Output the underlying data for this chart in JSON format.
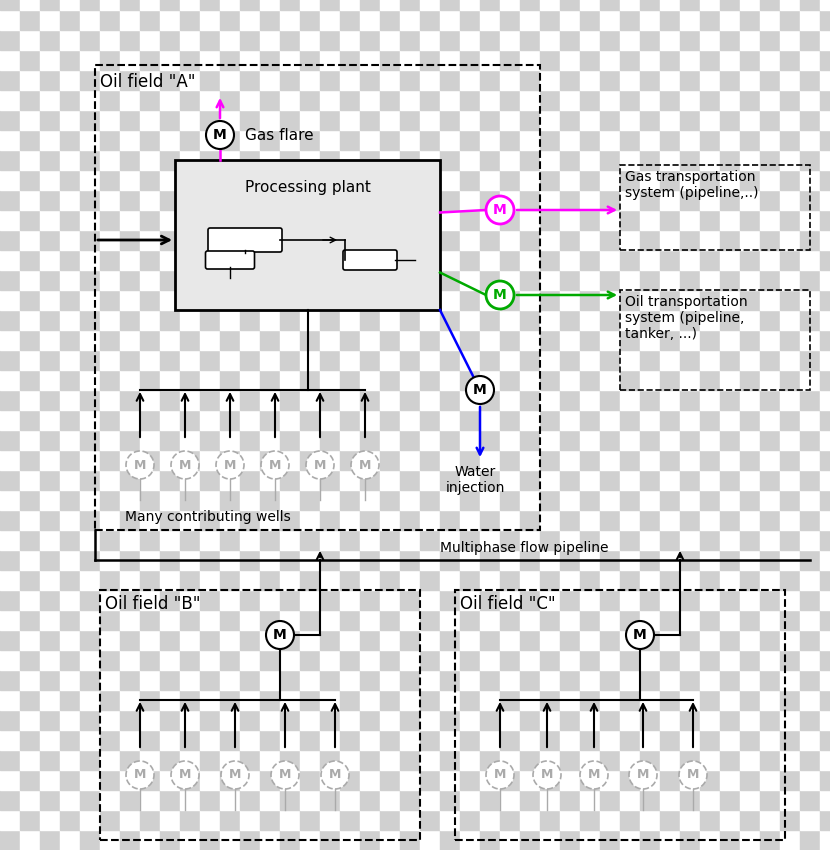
{
  "bg_checker_color1": "#d0d0d0",
  "bg_checker_color2": "#ffffff",
  "checker_size": 20,
  "title_oilfield_A": "Oil field \"A\"",
  "title_oilfield_B": "Oil field \"B\"",
  "title_oilfield_C": "Oil field \"C\"",
  "label_gas_flare": "Gas flare",
  "label_processing_plant": "Processing plant",
  "label_many_wells": "Many contributing wells",
  "label_water_injection": "Water\ninjection",
  "label_gas_transport": "Gas transportation\nsystem (pipeline,..)",
  "label_oil_transport": "Oil transportation\nsystem (pipeline,\ntanker, ...)",
  "label_multiphase": "Multiphase flow pipeline",
  "color_magenta": "#ff00ff",
  "color_green": "#00aa00",
  "color_blue": "#0000ff",
  "color_black": "#000000",
  "color_gray_circle": "#aaaaaa",
  "color_processing_bg": "#e0e0e0"
}
